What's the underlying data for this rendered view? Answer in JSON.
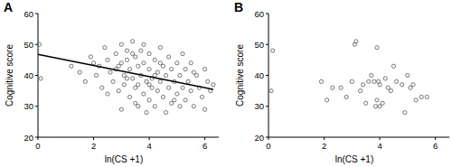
{
  "chart_data": [
    {
      "type": "scatter",
      "title": "A",
      "x_label": "ln(CS +1)",
      "y_label": "Cognitive score",
      "xlim": [
        0,
        6.5
      ],
      "xticks": [
        0,
        2,
        4,
        6
      ],
      "ylim": [
        20,
        60
      ],
      "yticks": [
        20,
        30,
        40,
        50,
        60
      ],
      "grid": false,
      "series": [
        {
          "type": "scatter",
          "color": "#555555",
          "marker": "open-circle",
          "x": [
            0.05,
            0.1,
            1.2,
            1.5,
            1.7,
            1.9,
            2.0,
            2.1,
            2.2,
            2.3,
            2.4,
            2.5,
            2.6,
            2.7,
            2.8,
            2.9,
            2.9,
            3.0,
            3.0,
            3.1,
            3.1,
            3.2,
            3.2,
            3.3,
            3.3,
            3.4,
            3.4,
            3.5,
            3.5,
            3.6,
            3.6,
            3.7,
            3.7,
            3.8,
            3.8,
            3.9,
            3.9,
            4.0,
            4.0,
            4.0,
            4.1,
            4.1,
            4.2,
            4.2,
            4.3,
            4.3,
            4.4,
            4.4,
            4.5,
            4.5,
            4.6,
            4.6,
            4.7,
            4.7,
            4.8,
            4.8,
            4.9,
            5.0,
            5.0,
            5.1,
            5.1,
            5.2,
            5.2,
            5.3,
            5.3,
            5.4,
            5.5,
            5.5,
            5.6,
            5.7,
            5.8,
            5.9,
            6.0,
            6.0,
            6.1,
            6.2,
            6.3,
            3.0,
            3.5,
            2.5,
            3.2,
            3.6,
            4.2,
            4.4,
            3.8,
            3.4,
            2.8,
            4.9,
            5.6,
            4.0
          ],
          "values": [
            50,
            39,
            43,
            41,
            38,
            46,
            44,
            40,
            43,
            36,
            49,
            45,
            41,
            38,
            47,
            43,
            35,
            50,
            44,
            40,
            37,
            48,
            45,
            42,
            33,
            51,
            39,
            46,
            36,
            43,
            30,
            48,
            40,
            44,
            34,
            38,
            28,
            47,
            42,
            32,
            39,
            36,
            45,
            30,
            41,
            35,
            49,
            38,
            43,
            33,
            40,
            28,
            46,
            36,
            42,
            31,
            38,
            44,
            34,
            40,
            30,
            47,
            36,
            42,
            32,
            38,
            44,
            35,
            30,
            40,
            36,
            33,
            42,
            29,
            38,
            35,
            37,
            29,
            31,
            34,
            39,
            37,
            40,
            44,
            50,
            47,
            42,
            32,
            41,
            37
          ]
        },
        {
          "type": "line",
          "color": "#000000",
          "x": [
            0,
            6.3
          ],
          "values": [
            46.8,
            35.5
          ]
        }
      ]
    },
    {
      "type": "scatter",
      "title": "B",
      "x_label": "ln(CS +1)",
      "y_label": "Cognitive score",
      "xlim": [
        0,
        6.5
      ],
      "xticks": [
        0,
        2,
        4,
        6
      ],
      "ylim": [
        20,
        60
      ],
      "yticks": [
        20,
        30,
        40,
        50,
        60
      ],
      "grid": false,
      "series": [
        {
          "type": "scatter",
          "color": "#555555",
          "marker": "open-circle",
          "x": [
            0.1,
            0.15,
            1.9,
            2.1,
            2.3,
            2.6,
            2.8,
            3.0,
            3.1,
            3.15,
            3.3,
            3.4,
            3.5,
            3.6,
            3.7,
            3.8,
            3.85,
            3.9,
            3.95,
            4.0,
            4.0,
            4.1,
            4.2,
            4.3,
            4.4,
            4.5,
            4.6,
            4.8,
            4.9,
            5.0,
            5.1,
            5.2,
            5.3,
            5.5,
            5.7,
            3.9
          ],
          "values": [
            35,
            48,
            38,
            32,
            36,
            36,
            33,
            38,
            50,
            51,
            35,
            37,
            31,
            38,
            40,
            38,
            30,
            32,
            38,
            30,
            37,
            31,
            39,
            36,
            35,
            43,
            38,
            37,
            28,
            40,
            36,
            37,
            32,
            33,
            33,
            49
          ]
        }
      ]
    }
  ]
}
